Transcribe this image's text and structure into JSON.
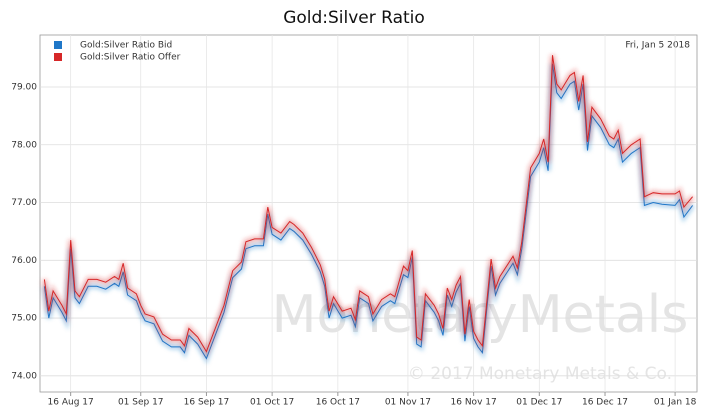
{
  "chart_data": {
    "type": "line",
    "title": "Gold:Silver Ratio",
    "annotation": "Fri, Jan 5 2018",
    "watermark": "MonetaryMetals",
    "copyright": "© 2017 Monetary Metals & Co.",
    "x": [
      "2017-08-10",
      "2017-08-11",
      "2017-08-12",
      "2017-08-14",
      "2017-08-15",
      "2017-08-16",
      "2017-08-17",
      "2017-08-18",
      "2017-08-20",
      "2017-08-22",
      "2017-08-24",
      "2017-08-26",
      "2017-08-27",
      "2017-08-28",
      "2017-08-29",
      "2017-08-31",
      "2017-09-01",
      "2017-09-02",
      "2017-09-04",
      "2017-09-06",
      "2017-09-08",
      "2017-09-10",
      "2017-09-11",
      "2017-09-12",
      "2017-09-14",
      "2017-09-16",
      "2017-09-18",
      "2017-09-20",
      "2017-09-21",
      "2017-09-22",
      "2017-09-24",
      "2017-09-25",
      "2017-09-27",
      "2017-09-29",
      "2017-09-30",
      "2017-10-01",
      "2017-10-03",
      "2017-10-05",
      "2017-10-06",
      "2017-10-08",
      "2017-10-10",
      "2017-10-12",
      "2017-10-13",
      "2017-10-14",
      "2017-10-15",
      "2017-10-17",
      "2017-10-19",
      "2017-10-20",
      "2017-10-21",
      "2017-10-23",
      "2017-10-24",
      "2017-10-26",
      "2017-10-28",
      "2017-10-29",
      "2017-10-31",
      "2017-11-01",
      "2017-11-02",
      "2017-11-03",
      "2017-11-04",
      "2017-11-05",
      "2017-11-07",
      "2017-11-08",
      "2017-11-09",
      "2017-11-10",
      "2017-11-11",
      "2017-11-12",
      "2017-11-13",
      "2017-11-14",
      "2017-11-15",
      "2017-11-16",
      "2017-11-17",
      "2017-11-18",
      "2017-11-20",
      "2017-11-21",
      "2017-11-22",
      "2017-11-25",
      "2017-11-26",
      "2017-11-27",
      "2017-11-29",
      "2017-12-01",
      "2017-12-02",
      "2017-12-03",
      "2017-12-04",
      "2017-12-05",
      "2017-12-06",
      "2017-12-08",
      "2017-12-09",
      "2017-12-10",
      "2017-12-11",
      "2017-12-12",
      "2017-12-13",
      "2017-12-15",
      "2017-12-17",
      "2017-12-18",
      "2017-12-19",
      "2017-12-20",
      "2017-12-22",
      "2017-12-24",
      "2017-12-25",
      "2017-12-27",
      "2017-12-29",
      "2018-01-01",
      "2018-01-02",
      "2018-01-03",
      "2018-01-05"
    ],
    "series": [
      {
        "name": "Gold:Silver Ratio Bid",
        "color": "#1f77c8",
        "values": [
          75.55,
          75.0,
          75.35,
          75.1,
          74.95,
          76.2,
          75.35,
          75.25,
          75.55,
          75.55,
          75.5,
          75.6,
          75.55,
          75.8,
          75.4,
          75.3,
          75.1,
          74.95,
          74.9,
          74.6,
          74.5,
          74.5,
          74.4,
          74.7,
          74.55,
          74.3,
          74.7,
          75.1,
          75.4,
          75.7,
          75.85,
          76.2,
          76.25,
          76.25,
          76.8,
          76.45,
          76.35,
          76.55,
          76.5,
          76.35,
          76.1,
          75.8,
          75.55,
          75.0,
          75.25,
          75.0,
          75.05,
          74.85,
          75.35,
          75.25,
          74.95,
          75.2,
          75.3,
          75.25,
          75.75,
          75.7,
          76.05,
          74.55,
          74.5,
          75.3,
          75.1,
          74.95,
          74.7,
          75.4,
          75.2,
          75.45,
          75.6,
          74.6,
          75.2,
          74.65,
          74.5,
          74.4,
          75.9,
          75.4,
          75.6,
          75.95,
          75.75,
          76.2,
          77.45,
          77.7,
          77.95,
          77.55,
          79.4,
          78.9,
          78.8,
          79.05,
          79.1,
          78.6,
          79.05,
          77.9,
          78.5,
          78.3,
          78.0,
          77.95,
          78.1,
          77.7,
          77.85,
          77.95,
          76.95,
          77.0,
          76.97,
          76.95,
          77.05,
          76.75,
          76.95
        ]
      },
      {
        "name": "Gold:Silver Ratio Offer",
        "color": "#d62728",
        "values": [
          75.67,
          75.12,
          75.47,
          75.22,
          75.07,
          76.35,
          75.47,
          75.37,
          75.67,
          75.67,
          75.62,
          75.72,
          75.67,
          75.95,
          75.52,
          75.42,
          75.22,
          75.07,
          75.02,
          74.72,
          74.62,
          74.62,
          74.52,
          74.82,
          74.67,
          74.42,
          74.82,
          75.22,
          75.52,
          75.82,
          75.97,
          76.32,
          76.37,
          76.37,
          76.92,
          76.57,
          76.47,
          76.67,
          76.62,
          76.47,
          76.22,
          75.92,
          75.67,
          75.12,
          75.37,
          75.12,
          75.17,
          74.97,
          75.47,
          75.37,
          75.07,
          75.32,
          75.42,
          75.37,
          75.9,
          75.82,
          76.17,
          74.67,
          74.62,
          75.42,
          75.22,
          75.07,
          74.82,
          75.52,
          75.32,
          75.57,
          75.72,
          74.72,
          75.32,
          74.77,
          74.62,
          74.52,
          76.02,
          75.52,
          75.72,
          76.07,
          75.87,
          76.32,
          77.6,
          77.85,
          78.1,
          77.7,
          79.55,
          79.05,
          78.95,
          79.2,
          79.25,
          78.75,
          79.2,
          78.05,
          78.65,
          78.45,
          78.15,
          78.1,
          78.25,
          77.85,
          78.0,
          78.1,
          77.1,
          77.17,
          77.15,
          77.15,
          77.2,
          76.92,
          77.1
        ]
      }
    ],
    "xlim": [
      "2017-08-09",
      "2018-01-06"
    ],
    "xticks": [
      {
        "value": "2017-08-16",
        "label": "16 Aug 17"
      },
      {
        "value": "2017-09-01",
        "label": "01 Sep 17"
      },
      {
        "value": "2017-09-16",
        "label": "16 Sep 17"
      },
      {
        "value": "2017-10-01",
        "label": "01 Oct 17"
      },
      {
        "value": "2017-10-16",
        "label": "16 Oct 17"
      },
      {
        "value": "2017-11-01",
        "label": "01 Nov 17"
      },
      {
        "value": "2017-11-16",
        "label": "16 Nov 17"
      },
      {
        "value": "2017-12-01",
        "label": "01 Dec 17"
      },
      {
        "value": "2017-12-16",
        "label": "16 Dec 17"
      },
      {
        "value": "2018-01-01",
        "label": "01 Jan 18"
      }
    ],
    "ylim": [
      73.72,
      79.9
    ],
    "yticks": [
      {
        "value": 74,
        "label": "74.00"
      },
      {
        "value": 75,
        "label": "75.00"
      },
      {
        "value": 76,
        "label": "76.00"
      },
      {
        "value": 77,
        "label": "77.00"
      },
      {
        "value": 78,
        "label": "78.00"
      },
      {
        "value": 79,
        "label": "79.00"
      }
    ],
    "grid": true,
    "legend": "top-left"
  }
}
